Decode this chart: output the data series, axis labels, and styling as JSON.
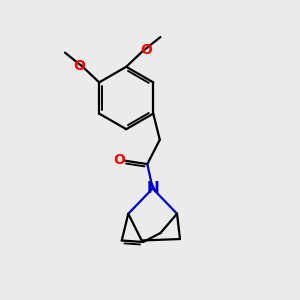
{
  "background_color": "#ebebeb",
  "bond_color": "#000000",
  "oxygen_color": "#ff0000",
  "nitrogen_color": "#0000cc",
  "line_width": 1.6,
  "font_size_atoms": 10,
  "fig_size": [
    3.0,
    3.0
  ],
  "dpi": 100,
  "xlim": [
    0,
    10
  ],
  "ylim": [
    0,
    10
  ]
}
